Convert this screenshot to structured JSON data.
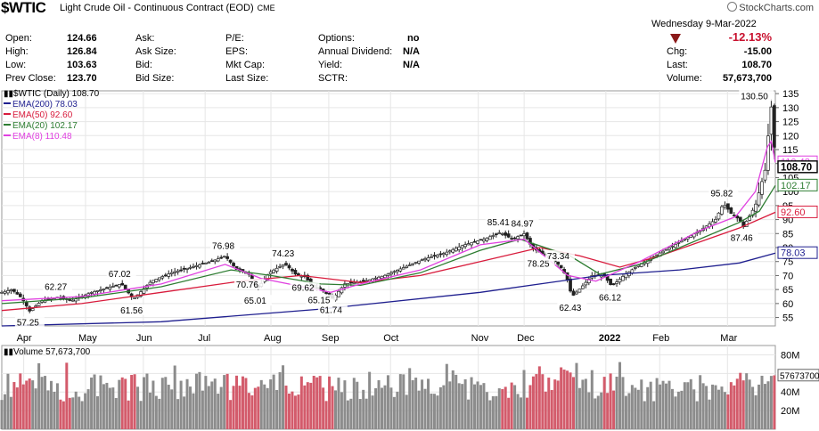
{
  "header": {
    "symbol": "$WTIC",
    "description": "Light Crude Oil - Continuous Contract (EOD)",
    "exchange": "CME",
    "brand": "StockCharts.com",
    "date": "Wednesday  9-Mar-2022"
  },
  "quote": {
    "open_label": "Open:",
    "open": "124.66",
    "high_label": "High:",
    "high": "126.84",
    "low_label": "Low:",
    "low": "103.63",
    "prevclose_label": "Prev Close:",
    "prevclose": "123.70",
    "ask_label": "Ask:",
    "ask": "",
    "asksize_label": "Ask Size:",
    "asksize": "",
    "bid_label": "Bid:",
    "bid": "",
    "bidsize_label": "Bid Size:",
    "bidsize": "",
    "pe_label": "P/E:",
    "eps_label": "EPS:",
    "mktcap_label": "Mkt Cap:",
    "lastsize_label": "Last Size:",
    "options_label": "Options:",
    "options": "no",
    "annualdiv_label": "Annual Dividend:",
    "annualdiv": "N/A",
    "yield_label": "Yield:",
    "yield": "N/A",
    "sctr_label": "SCTR:",
    "chgpct": "-12.13%",
    "chg_label": "Chg:",
    "chg": "-15.00",
    "last_label": "Last:",
    "last": "108.70",
    "volume_label": "Volume:",
    "volume": "57,673,700"
  },
  "legend": {
    "price": "$WTIC (Daily) 108.70",
    "ema200": "EMA(200) 78.03",
    "ema50": "EMA(50) 92.60",
    "ema20": "EMA(20) 102.17",
    "ema8": "EMA(8) 110.48",
    "volume": "Volume 57,673,700"
  },
  "colors": {
    "ema200": "#1f1f8f",
    "ema50": "#d81b3c",
    "ema20": "#2e7d32",
    "ema8": "#e040e0",
    "candle": "#222222",
    "vol_up": "#8c8c8c",
    "vol_down": "#d35b6b",
    "grid": "#e6e6e6"
  },
  "chart_data": {
    "type": "candlestick",
    "x_months": [
      "Apr",
      "May",
      "Jun",
      "Jul",
      "Aug",
      "Sep",
      "Oct",
      "Nov",
      "Dec",
      "2022",
      "Feb",
      "Mar"
    ],
    "y_ticks": [
      55,
      60,
      65,
      70,
      75,
      80,
      85,
      90,
      95,
      100,
      105,
      110,
      115,
      120,
      125,
      130,
      135
    ],
    "ylim": [
      52,
      136
    ],
    "annotations": [
      {
        "label": "57.25",
        "value": 57.25
      },
      {
        "label": "62.27",
        "value": 62.27
      },
      {
        "label": "61.56",
        "value": 61.56
      },
      {
        "label": "67.02",
        "value": 67.02
      },
      {
        "label": "76.98",
        "value": 76.98
      },
      {
        "label": "70.76",
        "value": 70.76
      },
      {
        "label": "65.01",
        "value": 65.01
      },
      {
        "label": "74.23",
        "value": 74.23
      },
      {
        "label": "69.62",
        "value": 69.62
      },
      {
        "label": "65.15",
        "value": 65.15
      },
      {
        "label": "61.74",
        "value": 61.74
      },
      {
        "label": "85.41",
        "value": 85.41
      },
      {
        "label": "84.97",
        "value": 84.97
      },
      {
        "label": "78.25",
        "value": 78.25
      },
      {
        "label": "73.34",
        "value": 73.34
      },
      {
        "label": "62.43",
        "value": 62.43
      },
      {
        "label": "66.12",
        "value": 66.12
      },
      {
        "label": "95.82",
        "value": 95.82
      },
      {
        "label": "87.46",
        "value": 87.46
      },
      {
        "label": "130.50",
        "value": 130.5
      }
    ],
    "price_tags": [
      {
        "label": "110.48",
        "value": 110.48,
        "series": "ema8"
      },
      {
        "label": "108.70",
        "value": 108.7,
        "series": "price"
      },
      {
        "label": "102.17",
        "value": 102.17,
        "series": "ema20"
      },
      {
        "label": "92.60",
        "value": 92.6,
        "series": "ema50"
      },
      {
        "label": "78.03",
        "value": 78.03,
        "series": "ema200"
      }
    ],
    "price_path": [
      [
        0,
        64
      ],
      [
        5,
        65
      ],
      [
        10,
        62
      ],
      [
        14,
        57.25
      ],
      [
        20,
        61
      ],
      [
        28,
        62.27
      ],
      [
        35,
        61
      ],
      [
        45,
        64
      ],
      [
        55,
        66
      ],
      [
        60,
        67.02
      ],
      [
        66,
        61.56
      ],
      [
        75,
        68
      ],
      [
        85,
        71
      ],
      [
        95,
        73
      ],
      [
        105,
        75
      ],
      [
        112,
        76.98
      ],
      [
        118,
        72
      ],
      [
        124,
        70.76
      ],
      [
        128,
        65.01
      ],
      [
        134,
        71
      ],
      [
        142,
        74.23
      ],
      [
        148,
        70
      ],
      [
        152,
        69.62
      ],
      [
        156,
        66
      ],
      [
        160,
        65.15
      ],
      [
        166,
        61.74
      ],
      [
        172,
        67
      ],
      [
        182,
        68
      ],
      [
        192,
        70
      ],
      [
        202,
        73
      ],
      [
        212,
        76
      ],
      [
        222,
        78
      ],
      [
        232,
        81
      ],
      [
        242,
        83
      ],
      [
        250,
        85.41
      ],
      [
        256,
        83
      ],
      [
        262,
        84.97
      ],
      [
        266,
        80
      ],
      [
        270,
        78.25
      ],
      [
        276,
        76
      ],
      [
        280,
        73.34
      ],
      [
        283,
        70
      ],
      [
        286,
        62.43
      ],
      [
        291,
        66
      ],
      [
        296,
        70
      ],
      [
        302,
        70
      ],
      [
        306,
        66.12
      ],
      [
        312,
        70
      ],
      [
        320,
        74
      ],
      [
        330,
        78
      ],
      [
        340,
        82
      ],
      [
        350,
        86
      ],
      [
        358,
        90
      ],
      [
        362,
        95.82
      ],
      [
        366,
        92
      ],
      [
        370,
        90
      ],
      [
        372,
        87.46
      ],
      [
        378,
        95
      ],
      [
        383,
        108
      ],
      [
        385,
        125
      ],
      [
        386,
        130.5
      ],
      [
        387,
        123
      ],
      [
        388,
        108.7
      ]
    ],
    "ema200": [
      [
        0,
        52
      ],
      [
        80,
        53.5
      ],
      [
        160,
        58
      ],
      [
        240,
        64
      ],
      [
        300,
        70
      ],
      [
        340,
        72
      ],
      [
        370,
        74.5
      ],
      [
        388,
        78.03
      ]
    ],
    "ema50": [
      [
        0,
        57.5
      ],
      [
        40,
        60
      ],
      [
        80,
        64
      ],
      [
        120,
        68
      ],
      [
        150,
        70
      ],
      [
        180,
        67.5
      ],
      [
        210,
        70
      ],
      [
        240,
        75
      ],
      [
        270,
        80
      ],
      [
        290,
        77
      ],
      [
        310,
        73
      ],
      [
        330,
        77
      ],
      [
        350,
        82
      ],
      [
        370,
        87
      ],
      [
        388,
        92.6
      ]
    ],
    "ema20": [
      [
        0,
        60
      ],
      [
        40,
        62
      ],
      [
        80,
        66
      ],
      [
        115,
        72
      ],
      [
        135,
        70
      ],
      [
        160,
        67
      ],
      [
        180,
        66.5
      ],
      [
        210,
        71
      ],
      [
        240,
        79
      ],
      [
        260,
        83
      ],
      [
        285,
        77
      ],
      [
        300,
        70.5
      ],
      [
        320,
        74
      ],
      [
        350,
        83
      ],
      [
        370,
        89
      ],
      [
        380,
        93
      ],
      [
        388,
        102.17
      ]
    ],
    "ema8": [
      [
        0,
        61
      ],
      [
        40,
        62.5
      ],
      [
        80,
        67
      ],
      [
        112,
        74
      ],
      [
        130,
        69
      ],
      [
        165,
        64
      ],
      [
        180,
        67
      ],
      [
        210,
        72
      ],
      [
        240,
        81
      ],
      [
        262,
        83
      ],
      [
        284,
        70
      ],
      [
        298,
        68
      ],
      [
        320,
        75
      ],
      [
        350,
        86
      ],
      [
        368,
        91
      ],
      [
        378,
        100
      ],
      [
        384,
        116
      ],
      [
        386,
        118
      ],
      [
        388,
        110.48
      ]
    ],
    "volume": {
      "ticks": [
        "80M",
        "60M",
        "40M",
        "20M"
      ],
      "tick_values": [
        80,
        60,
        40,
        20
      ],
      "last_tag": "57673700",
      "last_value": 57.67,
      "ylim": [
        0,
        90
      ]
    }
  }
}
